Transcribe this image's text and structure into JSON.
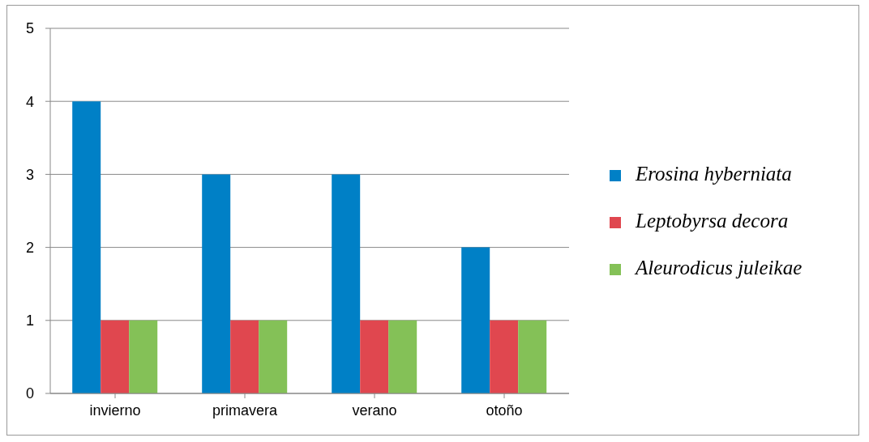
{
  "chart_data": {
    "type": "bar",
    "categories": [
      "invierno",
      "primavera",
      "verano",
      "otoño"
    ],
    "series": [
      {
        "name": "Erosina hyberniata",
        "color": "#0080c6",
        "values": [
          4,
          3,
          3,
          2
        ]
      },
      {
        "name": "Leptobyrsa decora",
        "color": "#e0474f",
        "values": [
          1,
          1,
          1,
          1
        ]
      },
      {
        "name": "Aleurodicus juleikae",
        "color": "#84c157",
        "values": [
          1,
          1,
          1,
          1
        ]
      }
    ],
    "ylim": [
      0,
      5
    ],
    "yticks": [
      0,
      1,
      2,
      3,
      4,
      5
    ],
    "grid": "y",
    "legend": "right"
  }
}
